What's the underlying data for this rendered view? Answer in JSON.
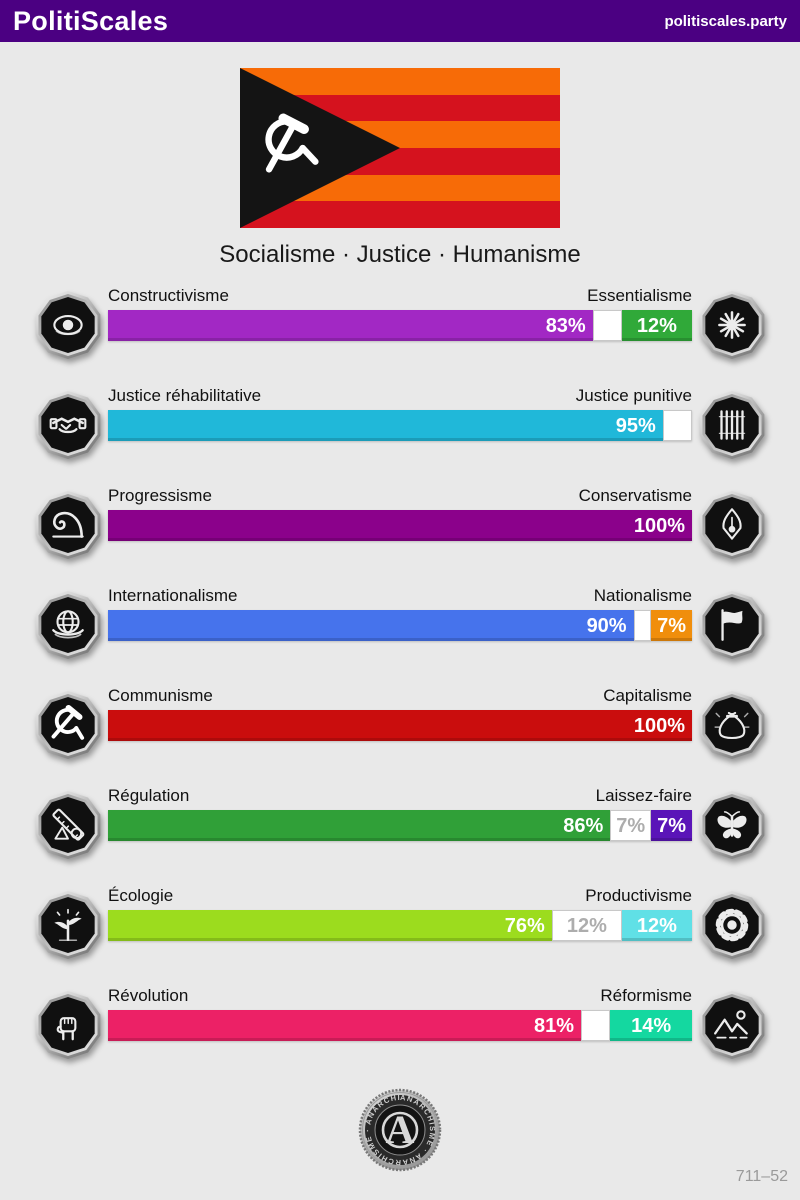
{
  "header": {
    "title": "PolitiScales",
    "site_label": "politiscales.party"
  },
  "flag": {
    "stripe_colors": [
      "#d5121e",
      "#f76b07",
      "#d5121e",
      "#f76b07",
      "#d5121e",
      "#f76b07"
    ],
    "triangle_color": "#141414",
    "emblem": "hammer-and-sickle"
  },
  "motto": "Socialisme · Justice · Humanisme",
  "axes": [
    {
      "left_label": "Constructivisme",
      "right_label": "Essentialisme",
      "left_pct": 83,
      "neutral_pct": 5,
      "right_pct": 12,
      "left_text": "83%",
      "neutral_text": "",
      "right_text": "12%",
      "left_color": "#a228c4",
      "right_color": "#30a939",
      "left_icon": "constructivism-eye",
      "right_icon": "essentialism-flower"
    },
    {
      "left_label": "Justice réhabilitative",
      "right_label": "Justice punitive",
      "left_pct": 95,
      "neutral_pct": 5,
      "right_pct": 0,
      "left_text": "95%",
      "neutral_text": "",
      "right_text": "",
      "left_color": "#20b8d9",
      "right_color": "#20b8d9",
      "left_icon": "rehabilitative-justice-handshake",
      "right_icon": "punitive-justice-prison-bars"
    },
    {
      "left_label": "Progressisme",
      "right_label": "Conservatisme",
      "left_pct": 100,
      "neutral_pct": 0,
      "right_pct": 0,
      "left_text": "100%",
      "neutral_text": "",
      "right_text": "",
      "left_color": "#8b018b",
      "right_color": "#8b018b",
      "left_icon": "progressivism-wave",
      "right_icon": "conservatism-pen"
    },
    {
      "left_label": "Internationalisme",
      "right_label": "Nationalisme",
      "left_pct": 90,
      "neutral_pct": 3,
      "right_pct": 7,
      "left_text": "90%",
      "neutral_text": "",
      "right_text": "7%",
      "left_color": "#4673ec",
      "right_color": "#f08e0c",
      "left_icon": "internationalism-globe",
      "right_icon": "nationalism-flag"
    },
    {
      "left_label": "Communisme",
      "right_label": "Capitalisme",
      "left_pct": 100,
      "neutral_pct": 0,
      "right_pct": 0,
      "left_text": "100%",
      "neutral_text": "",
      "right_text": "",
      "left_color": "#ca0d0d",
      "right_color": "#ca0d0d",
      "left_icon": "communism-hammer-sickle",
      "right_icon": "capitalism-money-bag"
    },
    {
      "left_label": "Régulation",
      "right_label": "Laissez-faire",
      "left_pct": 86,
      "neutral_pct": 7,
      "right_pct": 7,
      "left_text": "86%",
      "neutral_text": "7%",
      "right_text": "7%",
      "left_color": "#30a038",
      "right_color": "#5a14b8",
      "left_icon": "regulation-ruler",
      "right_icon": "laissez-faire-butterfly"
    },
    {
      "left_label": "Écologie",
      "right_label": "Productivisme",
      "left_pct": 76,
      "neutral_pct": 12,
      "right_pct": 12,
      "left_text": "76%",
      "neutral_text": "12%",
      "right_text": "12%",
      "left_color": "#9cdc1e",
      "right_color": "#60e0e6",
      "left_icon": "ecology-plant",
      "right_icon": "productivism-gear"
    },
    {
      "left_label": "Révolution",
      "right_label": "Réformisme",
      "left_pct": 81,
      "neutral_pct": 5,
      "right_pct": 14,
      "left_text": "81%",
      "neutral_text": "",
      "right_text": "14%",
      "left_color": "#ec2166",
      "right_color": "#14d8a0",
      "left_icon": "revolution-fist",
      "right_icon": "reformism-landscape"
    }
  ],
  "seal": {
    "ring_text": "ANARCHISME · ANARCHISME · ANARCHISME ·",
    "center_letter": "A"
  },
  "footer": {
    "code": "711–52"
  },
  "colors": {
    "header_bg": "#4b0082",
    "page_bg": "#e9e9e9",
    "neutral_bg": "#ffffff",
    "neutral_border": "#c8c8c8",
    "neutral_text": "#adadad"
  }
}
